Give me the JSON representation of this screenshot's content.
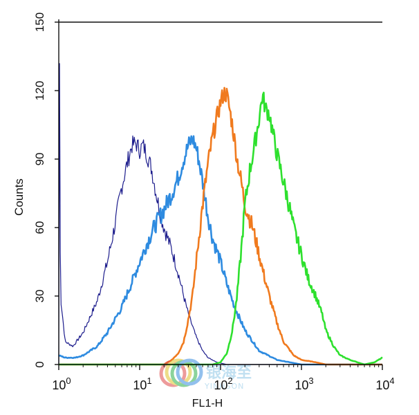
{
  "chart_data": {
    "type": "line",
    "title": "",
    "xlabel": "FL1-H",
    "ylabel": "Counts",
    "x_scale": "log",
    "xlim": [
      1,
      10000
    ],
    "ylim": [
      0,
      150
    ],
    "x_ticks": [
      {
        "base": "10",
        "exp": "0",
        "value": 1
      },
      {
        "base": "10",
        "exp": "1",
        "value": 10
      },
      {
        "base": "10",
        "exp": "2",
        "value": 100
      },
      {
        "base": "10",
        "exp": "3",
        "value": 1000
      },
      {
        "base": "10",
        "exp": "4",
        "value": 10000
      }
    ],
    "y_ticks": [
      "0",
      "30",
      "60",
      "90",
      "120",
      "150"
    ],
    "grid": false,
    "legend": "none",
    "series": [
      {
        "color": "#1c1c8c",
        "stroke": 1.2,
        "x": [
          1.0,
          1.02,
          1.05,
          1.2,
          1.5,
          2.0,
          3.0,
          4.0,
          5.0,
          6.0,
          7.0,
          8.0,
          9.0,
          10.0,
          11.0,
          12.0,
          14.0,
          16.0,
          18.0,
          20.0,
          25.0,
          30.0,
          35.0,
          40.0,
          50.0,
          60.0,
          70.0,
          90.0,
          120.0,
          10000.0
        ],
        "y": [
          0,
          140,
          30,
          10,
          8,
          14,
          28,
          45,
          62,
          78,
          88,
          96,
          97,
          94,
          96,
          93,
          86,
          75,
          66,
          60,
          50,
          40,
          30,
          22,
          12,
          6,
          3,
          1,
          0,
          0
        ]
      },
      {
        "color": "#2e8be0",
        "stroke": 2.6,
        "x": [
          1.0,
          1.2,
          1.6,
          2.0,
          3.0,
          4.0,
          6.0,
          8.0,
          10.0,
          12.0,
          15.0,
          20.0,
          25.0,
          30.0,
          35.0,
          40.0,
          45.0,
          50.0,
          55.0,
          60.0,
          70.0,
          80.0,
          100.0,
          120.0,
          150.0,
          200.0,
          300.0,
          500.0,
          1000.0,
          10000.0
        ],
        "y": [
          4,
          3,
          3,
          4,
          8,
          14,
          25,
          36,
          45,
          52,
          60,
          68,
          75,
          82,
          90,
          96,
          99,
          95,
          88,
          80,
          65,
          55,
          45,
          35,
          25,
          15,
          6,
          2,
          0,
          0
        ]
      },
      {
        "color": "#f07a1e",
        "stroke": 2.6,
        "x": [
          1.0,
          20.0,
          25.0,
          30.0,
          35.0,
          40.0,
          45.0,
          50.0,
          60.0,
          70.0,
          80.0,
          90.0,
          100.0,
          110.0,
          120.0,
          140.0,
          160.0,
          180.0,
          200.0,
          250.0,
          300.0,
          350.0,
          400.0,
          500.0,
          600.0,
          800.0,
          1000.0,
          1500.0,
          2000.0,
          10000.0
        ],
        "y": [
          0,
          0,
          2,
          5,
          10,
          20,
          30,
          45,
          70,
          88,
          100,
          108,
          115,
          119,
          118,
          105,
          90,
          80,
          70,
          60,
          48,
          38,
          30,
          18,
          10,
          4,
          2,
          1,
          0,
          0
        ]
      },
      {
        "color": "#2ee02e",
        "stroke": 2.6,
        "x": [
          1.0,
          80.0,
          100.0,
          120.0,
          140.0,
          160.0,
          180.0,
          200.0,
          230.0,
          260.0,
          300.0,
          330.0,
          360.0,
          400.0,
          450.0,
          500.0,
          600.0,
          700.0,
          800.0,
          1000.0,
          1200.0,
          1500.0,
          1800.0,
          2000.0,
          2500.0,
          3000.0,
          4000.0,
          6000.0,
          8000.0,
          10000.0
        ],
        "y": [
          0,
          0,
          1,
          5,
          15,
          30,
          50,
          70,
          85,
          95,
          108,
          118,
          112,
          110,
          100,
          92,
          80,
          70,
          60,
          48,
          38,
          30,
          22,
          15,
          8,
          4,
          2,
          0,
          1,
          3
        ]
      }
    ]
  },
  "watermark": {
    "logo_text": "银海至",
    "brand": "YINHSON"
  }
}
